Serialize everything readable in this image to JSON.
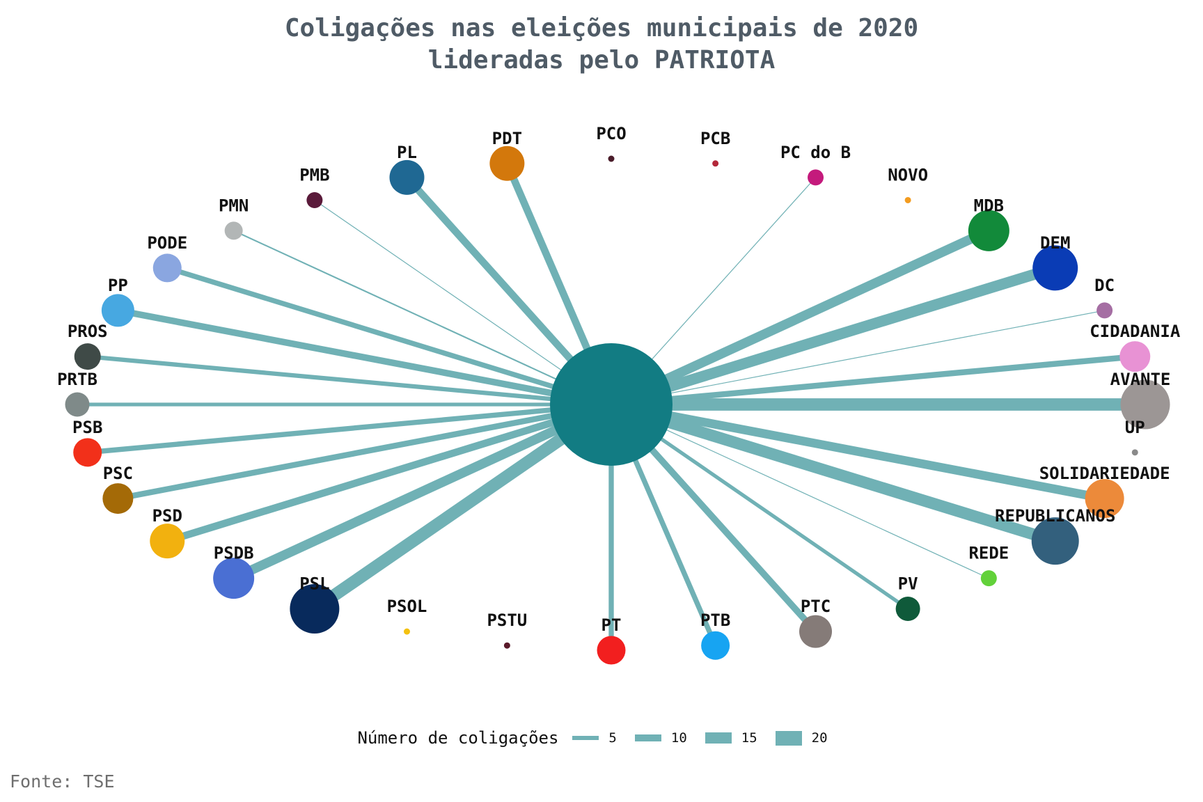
{
  "title": {
    "line1": "Coligações nas eleições municipais de 2020",
    "line2": "lideradas pelo PATRIOTA"
  },
  "source": "Fonte: TSE",
  "chart_data": {
    "type": "network",
    "center": {
      "name": "",
      "color": "#127c83"
    },
    "edge_color": "#70b1b5",
    "nodes": [
      {
        "name": "PRTB",
        "weight": 5,
        "color": "#7f8a89"
      },
      {
        "name": "PROS",
        "weight": 6,
        "color": "#3f4a47"
      },
      {
        "name": "PP",
        "weight": 9,
        "color": "#47a8e1"
      },
      {
        "name": "PODE",
        "weight": 7,
        "color": "#8aa6e0"
      },
      {
        "name": "PMN",
        "weight": 2,
        "color": "#b2b6b6"
      },
      {
        "name": "PMB",
        "weight": 1,
        "color": "#5a1a3a"
      },
      {
        "name": "PL",
        "weight": 10,
        "color": "#1f6893"
      },
      {
        "name": "PDT",
        "weight": 10,
        "color": "#d3780c"
      },
      {
        "name": "PCO",
        "weight": 0,
        "color": "#4a1c2a"
      },
      {
        "name": "PCB",
        "weight": 0,
        "color": "#b3283a"
      },
      {
        "name": "PC do B",
        "weight": 1,
        "color": "#c41a7c"
      },
      {
        "name": "NOVO",
        "weight": 0,
        "color": "#f39c20"
      },
      {
        "name": "MDB",
        "weight": 13,
        "color": "#128a3a"
      },
      {
        "name": "DEM",
        "weight": 15,
        "color": "#0a3cb5"
      },
      {
        "name": "DC",
        "weight": 1,
        "color": "#a56ea3"
      },
      {
        "name": "CIDADANIA",
        "weight": 8,
        "color": "#e892d4"
      },
      {
        "name": "AVANTE",
        "weight": 17,
        "color": "#9c9695"
      },
      {
        "name": "UP",
        "weight": 0,
        "color": "#8a8a8a"
      },
      {
        "name": "SOLIDARIEDADE",
        "weight": 12,
        "color": "#ec8a3a"
      },
      {
        "name": "REPUBLICANOS",
        "weight": 16,
        "color": "#33607d"
      },
      {
        "name": "REDE",
        "weight": 1,
        "color": "#62d13a"
      },
      {
        "name": "PV",
        "weight": 5,
        "color": "#0f5a3a"
      },
      {
        "name": "PTC",
        "weight": 9,
        "color": "#857b78"
      },
      {
        "name": "PTB",
        "weight": 7,
        "color": "#17a4f2"
      },
      {
        "name": "PT",
        "weight": 7,
        "color": "#f21f1f"
      },
      {
        "name": "PSTU",
        "weight": 0,
        "color": "#5a1a2a"
      },
      {
        "name": "PSOL",
        "weight": 0,
        "color": "#f4c10f"
      },
      {
        "name": "PSL",
        "weight": 17,
        "color": "#082a5c"
      },
      {
        "name": "PSDB",
        "weight": 13,
        "color": "#4a6fd3"
      },
      {
        "name": "PSD",
        "weight": 10,
        "color": "#f2b10f"
      },
      {
        "name": "PSC",
        "weight": 8,
        "color": "#a46a07"
      },
      {
        "name": "PSB",
        "weight": 7,
        "color": "#f2301a"
      }
    ]
  },
  "legend": {
    "title": "Número de coligações",
    "items": [
      {
        "label": "5",
        "value": 5
      },
      {
        "label": "10",
        "value": 10
      },
      {
        "label": "15",
        "value": 15
      },
      {
        "label": "20",
        "value": 20
      }
    ]
  }
}
